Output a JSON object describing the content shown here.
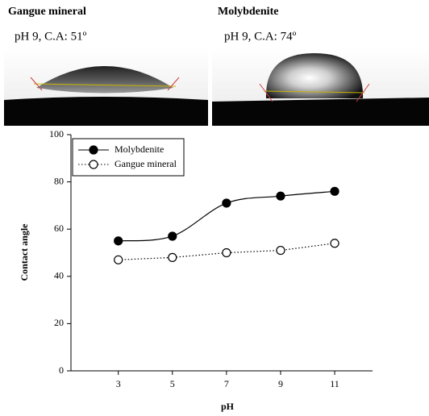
{
  "chart_data": {
    "type": "line",
    "annotations": [
      {
        "title": "Gangue mineral",
        "caption": "pH 9, C.A: 51º"
      },
      {
        "title": "Molybdenite",
        "caption": "pH 9, C.A: 74º"
      }
    ],
    "x_label": "pH",
    "y_label": "Contact angle",
    "x": [
      3,
      5,
      7,
      9,
      11
    ],
    "series": [
      {
        "name": "Molybdenite",
        "color": "#000000",
        "line_style": "solid",
        "marker_fill": "#000000",
        "smooth": true,
        "values": [
          55,
          57,
          71,
          74,
          76
        ]
      },
      {
        "name": "Gangue mineral",
        "color": "#000000",
        "line_style": "dotted",
        "marker_fill": "#ffffff",
        "smooth": false,
        "values": [
          47,
          48,
          50,
          51,
          54
        ]
      }
    ],
    "xlim": [
      1.25,
      12.4
    ],
    "xticks": [
      3,
      5,
      7,
      9,
      11
    ],
    "ylim": [
      0,
      100
    ],
    "yticks": [
      0,
      20,
      40,
      60,
      80,
      100
    ],
    "legend": "upper-left"
  }
}
